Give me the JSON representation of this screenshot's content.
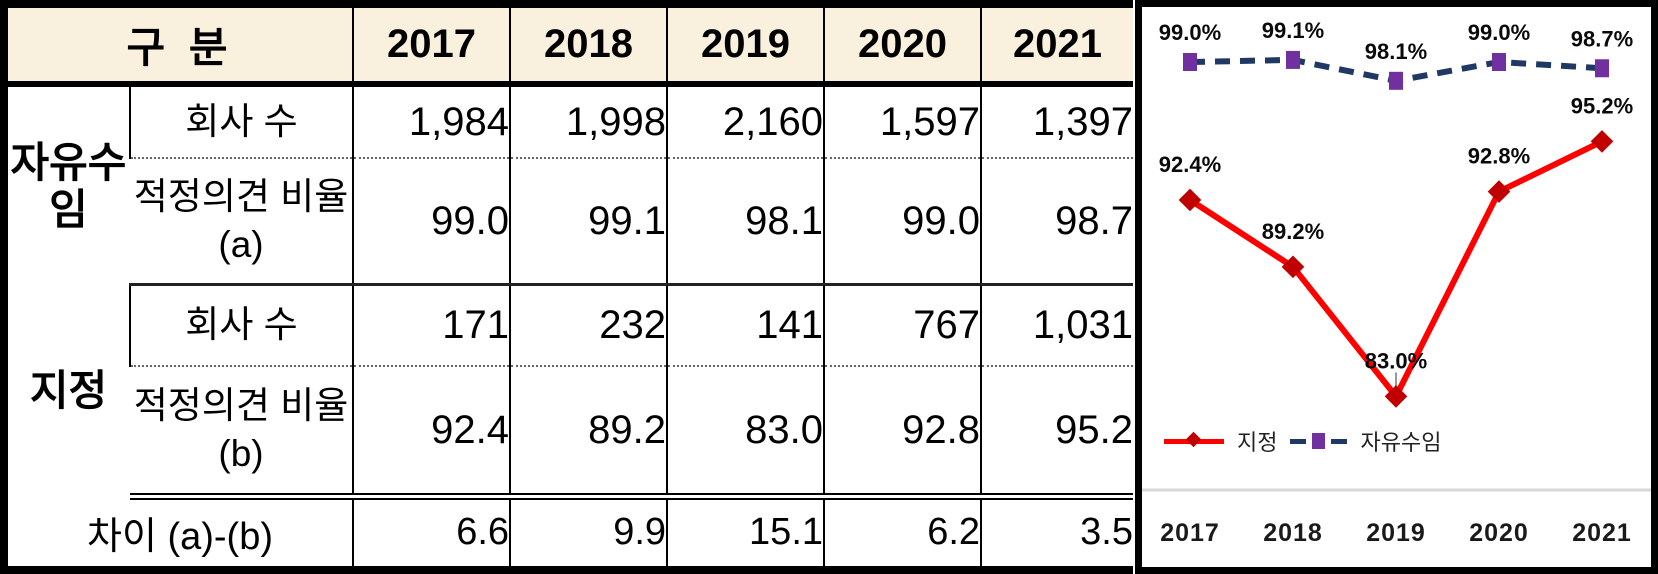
{
  "table": {
    "corner_label": "구 분",
    "years": [
      "2017",
      "2018",
      "2019",
      "2020",
      "2021"
    ],
    "groups": [
      {
        "label": "자유수임"
      },
      {
        "label": "지정"
      }
    ],
    "rows": [
      {
        "metric": "회사 수",
        "values": [
          "1,984",
          "1,998",
          "2,160",
          "1,597",
          "1,397"
        ]
      },
      {
        "metric": "적정의견 비율(a)",
        "values": [
          "99.0",
          "99.1",
          "98.1",
          "99.0",
          "98.7"
        ]
      },
      {
        "metric": "회사 수",
        "values": [
          "171",
          "232",
          "141",
          "767",
          "1,031"
        ]
      },
      {
        "metric": "적정의견 비율(b)",
        "values": [
          "92.4",
          "89.2",
          "83.0",
          "92.8",
          "95.2"
        ]
      },
      {
        "metric": "차이 (a)-(b)",
        "values": [
          "6.6",
          "9.9",
          "15.1",
          "6.2",
          "3.5"
        ]
      }
    ]
  },
  "chart_data": {
    "type": "line",
    "title": "",
    "x": [
      "2017",
      "2018",
      "2019",
      "2020",
      "2021"
    ],
    "series": [
      {
        "name": "지정",
        "values": [
          92.4,
          89.2,
          83.0,
          92.8,
          95.2
        ],
        "labels": [
          "92.4%",
          "89.2%",
          "83.0%",
          "92.8%",
          "95.2%"
        ],
        "line_color": "#FF0000",
        "marker_color": "#C00000",
        "marker": "diamond",
        "line_style": "solid",
        "callout_index": 2
      },
      {
        "name": "자유수임",
        "values": [
          99.0,
          99.1,
          98.1,
          99.0,
          98.7
        ],
        "labels": [
          "99.0%",
          "99.1%",
          "98.1%",
          "99.0%",
          "98.7%"
        ],
        "line_color": "#1F3864",
        "marker_color": "#7030A0",
        "marker": "square",
        "line_style": "dashed"
      }
    ],
    "ylim": [
      80,
      101
    ],
    "grid": false,
    "legend_position": "bottom-left"
  },
  "colors": {
    "header_bg": "#F9F1DE",
    "table_border": "#000000",
    "axis_separator": "#D8D8D8",
    "label_text": "#0a0a0a"
  }
}
